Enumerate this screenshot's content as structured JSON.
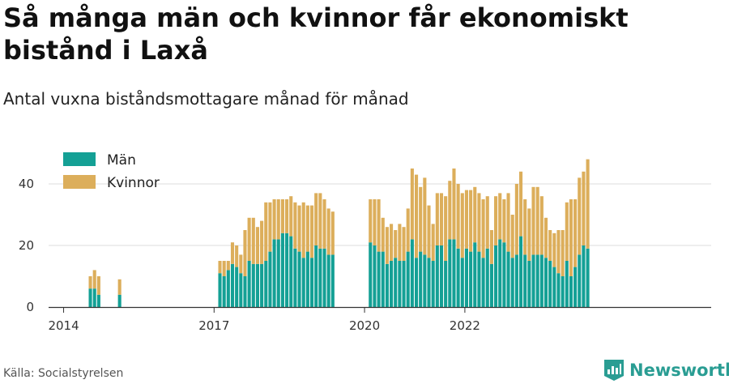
{
  "title": "Så många män och kvinnor får ekonomiskt bistånd i Laxå",
  "subtitle": "Antal vuxna biståndsmottagare månad för månad",
  "source": "Källa: Socialstyrelsen",
  "brand": {
    "name": "Newsworthy",
    "icon": "newsworthy-logo-icon"
  },
  "colors": {
    "men": "#14a095",
    "women": "#dcae5b",
    "grid": "#dddddd",
    "axis": "#333333"
  },
  "chart_data": {
    "type": "bar",
    "stacked": true,
    "x_unit": "month",
    "x_start": "2014-01",
    "ylim": [
      0,
      50
    ],
    "y_ticks": [
      0,
      20,
      40
    ],
    "x_ticks": [
      "2014",
      "2017",
      "2020",
      "2022"
    ],
    "legend_position": "top-left",
    "grid": "horizontal",
    "series": [
      {
        "name": "Män",
        "values": [
          null,
          null,
          null,
          null,
          null,
          null,
          6,
          6,
          4,
          null,
          null,
          null,
          null,
          4,
          null,
          null,
          null,
          null,
          null,
          null,
          null,
          null,
          null,
          null,
          null,
          null,
          null,
          null,
          null,
          null,
          null,
          null,
          null,
          null,
          null,
          null,
          null,
          11,
          10,
          12,
          14,
          13,
          11,
          10,
          15,
          14,
          14,
          14,
          15,
          18,
          22,
          22,
          24,
          24,
          23,
          19,
          18,
          16,
          18,
          16,
          20,
          19,
          19,
          17,
          17,
          null,
          null,
          null,
          null,
          null,
          null,
          null,
          null,
          21,
          20,
          18,
          18,
          14,
          15,
          16,
          15,
          15,
          18,
          22,
          16,
          18,
          17,
          16,
          15,
          20,
          20,
          15,
          22,
          22,
          19,
          16,
          19,
          18,
          21,
          18,
          16,
          19,
          14,
          20,
          22,
          21,
          18,
          16,
          17,
          23,
          17,
          15,
          17,
          17,
          17,
          16,
          15,
          13,
          11,
          10,
          15,
          10,
          13,
          17,
          20,
          19
        ]
      },
      {
        "name": "Kvinnor",
        "values": [
          null,
          null,
          null,
          null,
          null,
          null,
          4,
          6,
          6,
          null,
          null,
          null,
          null,
          5,
          null,
          null,
          null,
          null,
          null,
          null,
          null,
          null,
          null,
          null,
          null,
          null,
          null,
          null,
          null,
          null,
          null,
          null,
          null,
          null,
          null,
          null,
          null,
          4,
          5,
          3,
          7,
          7,
          6,
          15,
          14,
          15,
          12,
          14,
          19,
          16,
          13,
          13,
          11,
          11,
          13,
          15,
          15,
          18,
          15,
          17,
          17,
          18,
          16,
          15,
          14,
          null,
          null,
          null,
          null,
          null,
          null,
          null,
          null,
          14,
          15,
          17,
          11,
          12,
          12,
          9,
          12,
          11,
          14,
          23,
          27,
          21,
          25,
          17,
          12,
          17,
          17,
          21,
          19,
          23,
          21,
          21,
          19,
          20,
          18,
          19,
          19,
          17,
          11,
          16,
          15,
          14,
          19,
          14,
          23,
          21,
          18,
          17,
          22,
          22,
          19,
          13,
          10,
          11,
          14,
          15,
          19,
          25,
          22,
          25,
          24,
          29
        ]
      }
    ]
  }
}
